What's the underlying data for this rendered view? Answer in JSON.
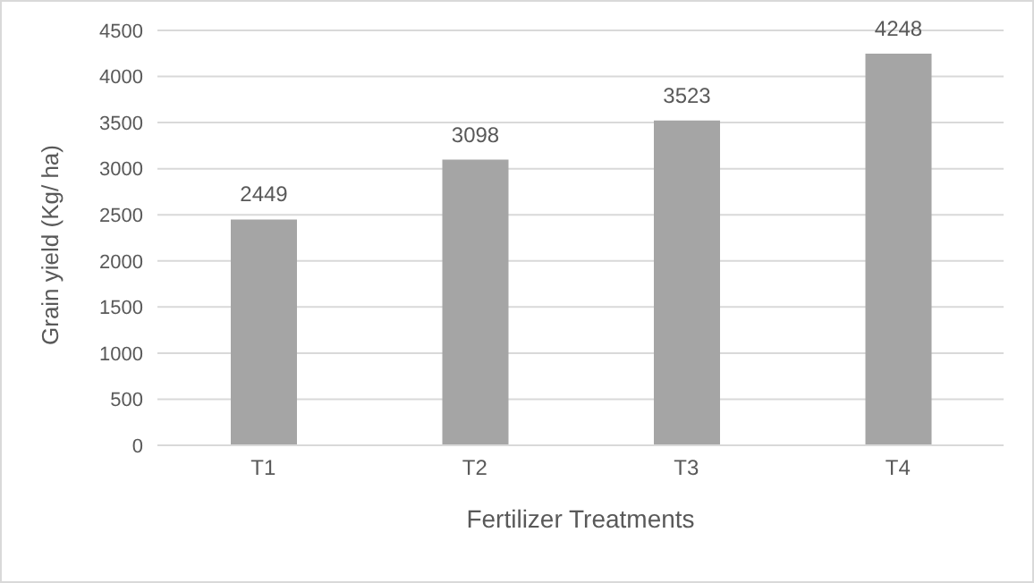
{
  "chart_data": {
    "type": "bar",
    "xlabel": "Fertilizer Treatments",
    "ylabel": "Grain yield (Kg/ ha)",
    "categories": [
      "T1",
      "T2",
      "T3",
      "T4"
    ],
    "values": [
      2449,
      3098,
      3523,
      4248
    ],
    "color": "#a5a5a5",
    "ylim": [
      0,
      4500
    ],
    "yticks": [
      0,
      500,
      1000,
      1500,
      2000,
      2500,
      3000,
      3500,
      4000,
      4500
    ],
    "grid": "y",
    "data_labels": true,
    "legend": false
  }
}
